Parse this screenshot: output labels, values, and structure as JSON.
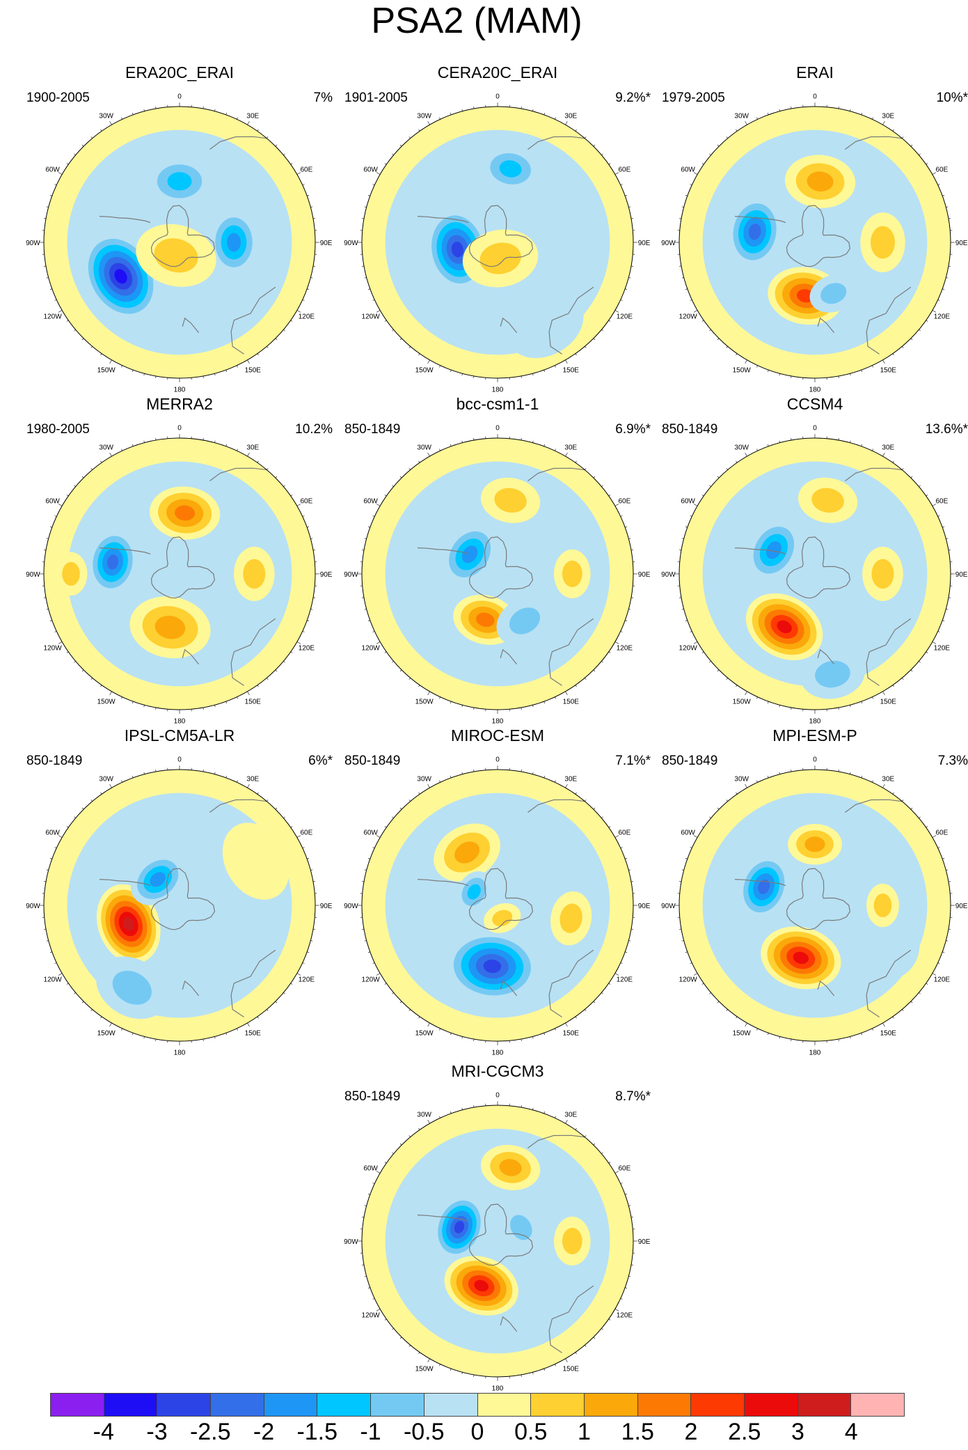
{
  "title": "PSA2 (MAM)",
  "longitude_labels": {
    "n0": "0",
    "n30e": "30E",
    "n60e": "60E",
    "n90e": "90E",
    "n120e": "120E",
    "n150e": "150E",
    "n180": "180",
    "n150w": "150W",
    "n120w": "120W",
    "n90w": "90W",
    "n60w": "60W",
    "n30w": "30W"
  },
  "panels": [
    {
      "title": "ERA20C_ERAI",
      "period": "1900-2005",
      "variance": "7%",
      "anomalies": [
        {
          "lon": -120,
          "r": 0.5,
          "v": -3.5,
          "size": 0.34
        },
        {
          "lon": 0,
          "r": 0.45,
          "v": -1.5,
          "size": 0.24
        },
        {
          "lon": 90,
          "r": 0.4,
          "v": -1.8,
          "size": 0.24
        },
        {
          "lon": -165,
          "r": 0.1,
          "v": 0.9,
          "size": 0.3
        }
      ]
    },
    {
      "title": "CERA20C_ERAI",
      "period": "1901-2005",
      "variance": "9.2%*",
      "anomalies": [
        {
          "lon": -100,
          "r": 0.3,
          "v": -3.0,
          "size": 0.3
        },
        {
          "lon": 10,
          "r": 0.55,
          "v": -1.6,
          "size": 0.22
        },
        {
          "lon": 150,
          "r": 0.7,
          "v": -0.7,
          "size": 0.3
        },
        {
          "lon": 170,
          "r": 0.12,
          "v": 0.9,
          "size": 0.28
        }
      ]
    },
    {
      "title": "ERAI",
      "period": "1979-2005",
      "variance": "10%*",
      "anomalies": [
        {
          "lon": -80,
          "r": 0.45,
          "v": -2.5,
          "size": 0.26
        },
        {
          "lon": 5,
          "r": 0.45,
          "v": 1.6,
          "size": 0.26
        },
        {
          "lon": -170,
          "r": 0.4,
          "v": 2.5,
          "size": 0.28
        },
        {
          "lon": 90,
          "r": 0.5,
          "v": 0.9,
          "size": 0.22
        },
        {
          "lon": 160,
          "r": 0.4,
          "v": -0.8,
          "size": 0.18
        }
      ]
    },
    {
      "title": "MERRA2",
      "period": "1980-2005",
      "variance": "10.2%",
      "anomalies": [
        {
          "lon": -80,
          "r": 0.5,
          "v": -2.5,
          "size": 0.24
        },
        {
          "lon": 5,
          "r": 0.45,
          "v": 2.0,
          "size": 0.26
        },
        {
          "lon": -170,
          "r": 0.4,
          "v": 1.7,
          "size": 0.3
        },
        {
          "lon": 90,
          "r": 0.55,
          "v": 1.2,
          "size": 0.2
        },
        {
          "lon": -90,
          "r": 0.8,
          "v": 0.8,
          "size": 0.16
        }
      ]
    },
    {
      "title": "bcc-csm1-1",
      "period": "850-1849",
      "variance": "6.9%*",
      "anomalies": [
        {
          "lon": -55,
          "r": 0.25,
          "v": -2.0,
          "size": 0.24
        },
        {
          "lon": -165,
          "r": 0.35,
          "v": 1.8,
          "size": 0.24
        },
        {
          "lon": 10,
          "r": 0.55,
          "v": 0.9,
          "size": 0.22
        },
        {
          "lon": 90,
          "r": 0.55,
          "v": 0.9,
          "size": 0.18
        },
        {
          "lon": 150,
          "r": 0.4,
          "v": -0.8,
          "size": 0.22
        }
      ]
    },
    {
      "title": "CCSM4",
      "period": "850-1849",
      "variance": "13.6%*",
      "anomalies": [
        {
          "lon": -60,
          "r": 0.35,
          "v": -2.2,
          "size": 0.24
        },
        {
          "lon": -150,
          "r": 0.45,
          "v": 3.0,
          "size": 0.3
        },
        {
          "lon": 10,
          "r": 0.55,
          "v": 1.0,
          "size": 0.22
        },
        {
          "lon": 90,
          "r": 0.5,
          "v": 1.2,
          "size": 0.2
        },
        {
          "lon": 170,
          "r": 0.75,
          "v": -1.0,
          "size": 0.24
        }
      ]
    },
    {
      "title": "IPSL-CM5A-LR",
      "period": "850-1849",
      "variance": "6%*",
      "anomalies": [
        {
          "lon": -110,
          "r": 0.4,
          "v": 3.5,
          "size": 0.3
        },
        {
          "lon": -40,
          "r": 0.25,
          "v": -1.8,
          "size": 0.22
        },
        {
          "lon": -150,
          "r": 0.7,
          "v": -0.8,
          "size": 0.28
        },
        {
          "lon": 60,
          "r": 0.65,
          "v": 0.7,
          "size": 0.3
        }
      ]
    },
    {
      "title": "MIROC-ESM",
      "period": "850-1849",
      "variance": "7.1%*",
      "anomalies": [
        {
          "lon": -175,
          "r": 0.45,
          "v": -3.0,
          "size": 0.34
        },
        {
          "lon": -30,
          "r": 0.45,
          "v": 1.6,
          "size": 0.26
        },
        {
          "lon": -60,
          "r": 0.2,
          "v": -1.6,
          "size": 0.16
        },
        {
          "lon": 100,
          "r": 0.55,
          "v": 0.8,
          "size": 0.2
        },
        {
          "lon": 160,
          "r": 0.1,
          "v": 0.8,
          "size": 0.14
        }
      ]
    },
    {
      "title": "MPI-ESM-P",
      "period": "850-1849",
      "variance": "7.3%",
      "anomalies": [
        {
          "lon": -70,
          "r": 0.4,
          "v": -2.6,
          "size": 0.24
        },
        {
          "lon": -165,
          "r": 0.4,
          "v": 2.8,
          "size": 0.3
        },
        {
          "lon": 0,
          "r": 0.45,
          "v": 1.4,
          "size": 0.2
        },
        {
          "lon": 90,
          "r": 0.5,
          "v": 1.0,
          "size": 0.16
        },
        {
          "lon": 120,
          "r": 0.7,
          "v": -0.7,
          "size": 0.2
        }
      ]
    },
    {
      "title": "MRI-CGCM3",
      "period": "850-1849",
      "variance": "8.7%*",
      "anomalies": [
        {
          "lon": -70,
          "r": 0.3,
          "v": -2.8,
          "size": 0.24
        },
        {
          "lon": -160,
          "r": 0.35,
          "v": 3.0,
          "size": 0.28
        },
        {
          "lon": 10,
          "r": 0.55,
          "v": 1.5,
          "size": 0.22
        },
        {
          "lon": 90,
          "r": 0.55,
          "v": 1.0,
          "size": 0.18
        },
        {
          "lon": 60,
          "r": 0.2,
          "v": -0.8,
          "size": 0.18
        }
      ]
    }
  ],
  "colorbar": {
    "colors": [
      "#8b1fef",
      "#1e0ef6",
      "#2c44e6",
      "#336fe8",
      "#1e96f5",
      "#00c6ff",
      "#74c9f3",
      "#b8e1f4",
      "#fff897",
      "#fed031",
      "#fba80a",
      "#fc7a04",
      "#fe3a03",
      "#ec0b0b",
      "#cf1d1d",
      "#ffb3b3"
    ],
    "labels": [
      "-4",
      "-3",
      "-2.5",
      "-2",
      "-1.5",
      "-1",
      "-0.5",
      "0",
      "0.5",
      "1",
      "1.5",
      "2",
      "2.5",
      "3",
      "4"
    ],
    "levels": [
      -4,
      -3,
      -2.5,
      -2,
      -1.5,
      -1,
      -0.5,
      0,
      0.5,
      1,
      1.5,
      2,
      2.5,
      3,
      4
    ]
  }
}
